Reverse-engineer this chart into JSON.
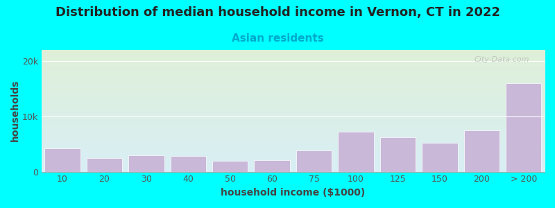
{
  "title": "Distribution of median household income in Vernon, CT in 2022",
  "subtitle": "Asian residents",
  "xlabel": "household income ($1000)",
  "ylabel": "households",
  "background_color": "#00FFFF",
  "plot_bg_gradient_top": "#dff0d8",
  "plot_bg_gradient_bottom": "#d8eef5",
  "bar_color": "#c9b8d8",
  "bar_edgecolor": "#ffffff",
  "categories": [
    "10",
    "20",
    "30",
    "40",
    "50",
    "60",
    "75",
    "100",
    "125",
    "150",
    "200",
    "> 200"
  ],
  "values": [
    4200,
    2400,
    2900,
    2800,
    2000,
    2100,
    3800,
    7200,
    6200,
    5200,
    7500,
    16000
  ],
  "ylim": [
    0,
    22000
  ],
  "yticks": [
    0,
    10000,
    20000
  ],
  "ytick_labels": [
    "0",
    "10k",
    "20k"
  ],
  "title_fontsize": 13,
  "subtitle_fontsize": 11,
  "axis_label_fontsize": 10,
  "tick_fontsize": 9,
  "title_color": "#222222",
  "subtitle_color": "#00aacc",
  "axis_label_color": "#444444",
  "watermark_text": "City-Data.com"
}
